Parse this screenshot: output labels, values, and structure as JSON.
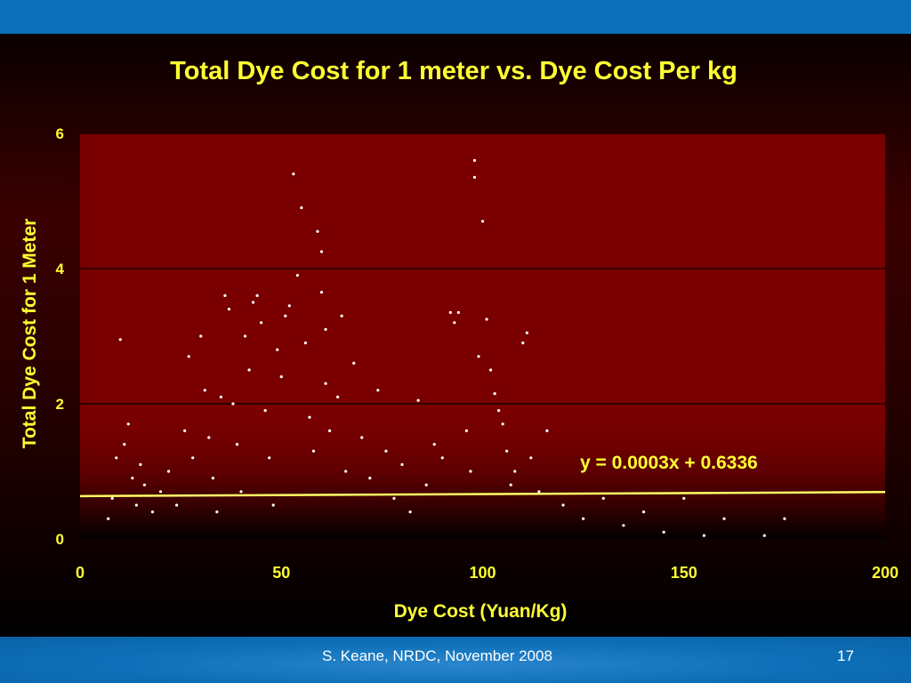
{
  "footer": {
    "credit": "S. Keane, NRDC, November 2008",
    "page_number": "17"
  },
  "chart_data": {
    "type": "scatter",
    "title": "Total Dye Cost for 1 meter vs. Dye Cost Per kg",
    "xlabel": "Dye Cost (Yuan/Kg)",
    "ylabel": "Total Dye Cost for 1 Meter",
    "xlim": [
      0,
      200
    ],
    "ylim": [
      0,
      6
    ],
    "x_ticks": [
      0,
      50,
      100,
      150,
      200
    ],
    "y_ticks": [
      0,
      2,
      4,
      6
    ],
    "grid": "horizontal",
    "trendline": {
      "slope": 0.0003,
      "intercept": 0.6336,
      "equation": "y = 0.0003x + 0.6336"
    },
    "colors": {
      "points": "#ffffff",
      "trendline": "#ffff66",
      "text": "#ffff33",
      "plot_bg": "#7a0000"
    },
    "points": [
      [
        10,
        2.95
      ],
      [
        12,
        1.7
      ],
      [
        11,
        1.4
      ],
      [
        9,
        1.2
      ],
      [
        13,
        0.9
      ],
      [
        8,
        0.6
      ],
      [
        7,
        0.3
      ],
      [
        14,
        0.5
      ],
      [
        15,
        1.1
      ],
      [
        16,
        0.8
      ],
      [
        18,
        0.4
      ],
      [
        20,
        0.7
      ],
      [
        22,
        1.0
      ],
      [
        24,
        0.5
      ],
      [
        26,
        1.6
      ],
      [
        27,
        2.7
      ],
      [
        28,
        1.2
      ],
      [
        30,
        3.0
      ],
      [
        31,
        2.2
      ],
      [
        32,
        1.5
      ],
      [
        33,
        0.9
      ],
      [
        34,
        0.4
      ],
      [
        35,
        2.1
      ],
      [
        36,
        3.6
      ],
      [
        37,
        3.4
      ],
      [
        38,
        2.0
      ],
      [
        39,
        1.4
      ],
      [
        40,
        0.7
      ],
      [
        41,
        3.0
      ],
      [
        42,
        2.5
      ],
      [
        43,
        3.5
      ],
      [
        44,
        3.6
      ],
      [
        45,
        3.2
      ],
      [
        46,
        1.9
      ],
      [
        47,
        1.2
      ],
      [
        48,
        0.5
      ],
      [
        49,
        2.8
      ],
      [
        50,
        2.4
      ],
      [
        51,
        3.3
      ],
      [
        52,
        3.45
      ],
      [
        53,
        5.4
      ],
      [
        54,
        3.9
      ],
      [
        55,
        4.9
      ],
      [
        56,
        2.9
      ],
      [
        57,
        1.8
      ],
      [
        58,
        1.3
      ],
      [
        59,
        4.55
      ],
      [
        60,
        4.25
      ],
      [
        60,
        3.65
      ],
      [
        61,
        3.1
      ],
      [
        61,
        2.3
      ],
      [
        62,
        1.6
      ],
      [
        64,
        2.1
      ],
      [
        65,
        3.3
      ],
      [
        66,
        1.0
      ],
      [
        68,
        2.6
      ],
      [
        70,
        1.5
      ],
      [
        72,
        0.9
      ],
      [
        74,
        2.2
      ],
      [
        76,
        1.3
      ],
      [
        78,
        0.6
      ],
      [
        80,
        1.1
      ],
      [
        82,
        0.4
      ],
      [
        84,
        2.05
      ],
      [
        86,
        0.8
      ],
      [
        88,
        1.4
      ],
      [
        90,
        1.2
      ],
      [
        92,
        3.35
      ],
      [
        93,
        3.2
      ],
      [
        94,
        3.35
      ],
      [
        96,
        1.6
      ],
      [
        97,
        1.0
      ],
      [
        98,
        5.35
      ],
      [
        98,
        5.6
      ],
      [
        99,
        2.7
      ],
      [
        100,
        4.7
      ],
      [
        101,
        3.25
      ],
      [
        102,
        2.5
      ],
      [
        103,
        2.15
      ],
      [
        104,
        1.9
      ],
      [
        105,
        1.7
      ],
      [
        106,
        1.3
      ],
      [
        107,
        0.8
      ],
      [
        108,
        1.0
      ],
      [
        110,
        2.9
      ],
      [
        111,
        3.05
      ],
      [
        112,
        1.2
      ],
      [
        114,
        0.7
      ],
      [
        116,
        1.6
      ],
      [
        120,
        0.5
      ],
      [
        125,
        0.3
      ],
      [
        130,
        0.6
      ],
      [
        135,
        0.2
      ],
      [
        140,
        0.4
      ],
      [
        145,
        0.1
      ],
      [
        150,
        0.6
      ],
      [
        155,
        0.05
      ],
      [
        160,
        0.3
      ],
      [
        170,
        0.05
      ],
      [
        175,
        0.3
      ]
    ]
  }
}
